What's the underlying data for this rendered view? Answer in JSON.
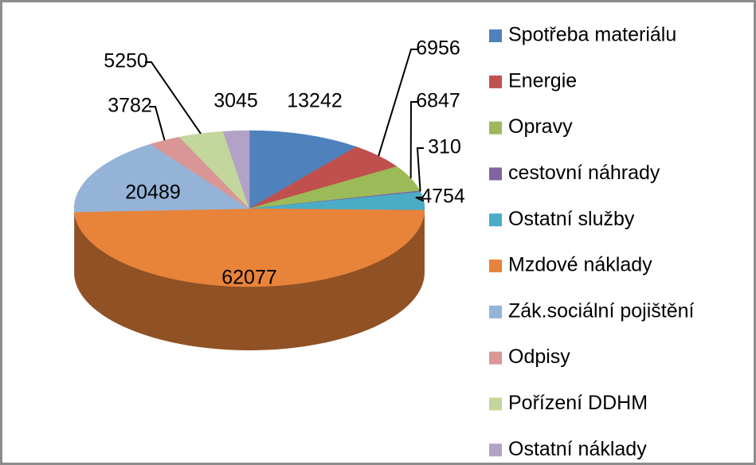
{
  "chart_data": {
    "type": "pie",
    "categories": [
      "Spotřeba materiálu",
      "Energie",
      "Opravy",
      "cestovní náhrady",
      "Ostatní služby",
      "Mzdové náklady",
      "Zák.sociální pojištění",
      "Odpisy",
      "Pořízení DDHM",
      "Ostatní náklady"
    ],
    "values": [
      13242,
      6956,
      6847,
      310,
      4754,
      62077,
      20489,
      3782,
      5250,
      3045
    ],
    "colors": [
      "#4f81bd",
      "#c0504d",
      "#9bbb59",
      "#8064a2",
      "#4bacc6",
      "#e8833a",
      "#95b3d7",
      "#d99694",
      "#c3d69b",
      "#b3a2c7"
    ],
    "legend": "right"
  }
}
